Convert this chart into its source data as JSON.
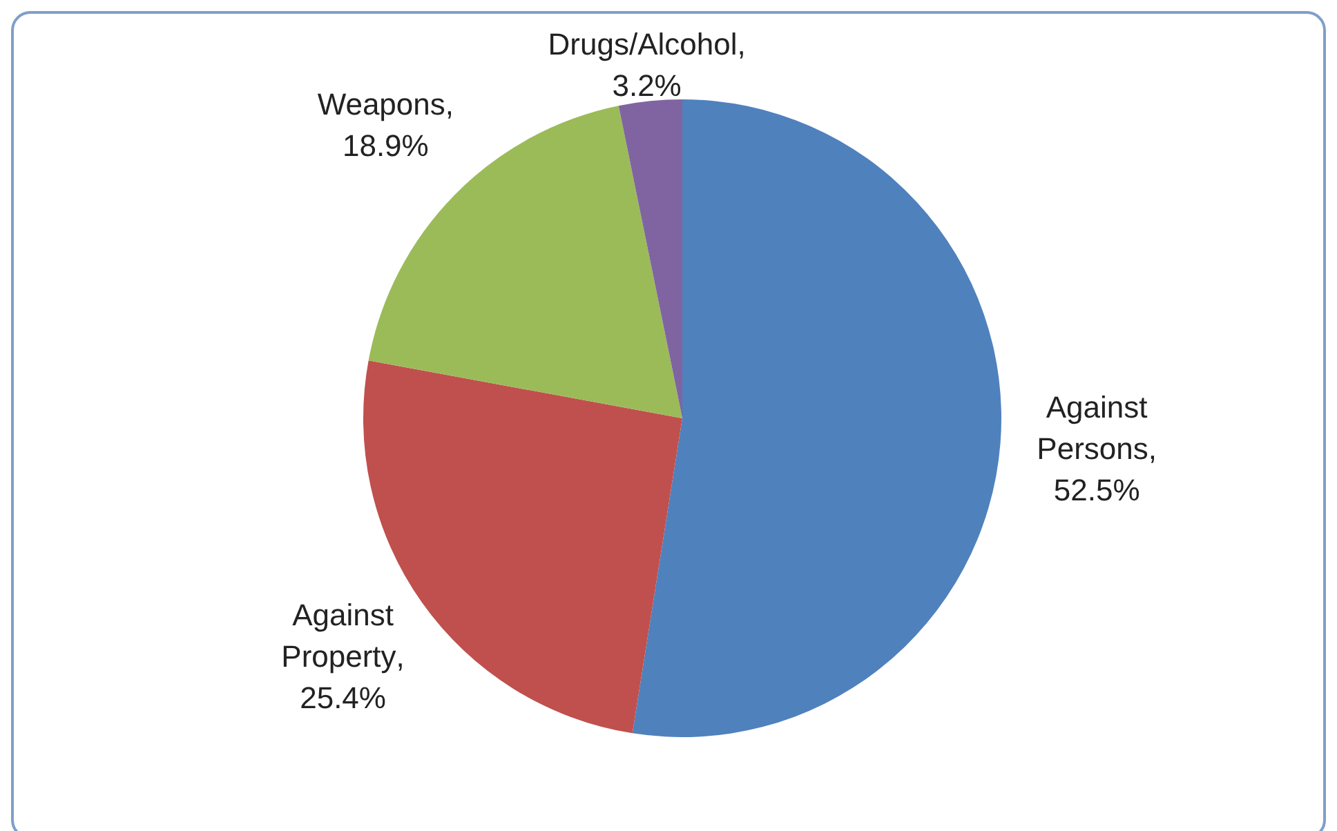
{
  "chart_data": {
    "type": "pie",
    "categories": [
      "Against Persons",
      "Against Property",
      "Weapons",
      "Drugs/Alcohol"
    ],
    "values": [
      52.5,
      25.4,
      18.9,
      3.2
    ],
    "value_labels": [
      ", 52.5%",
      ", 25.4%",
      ", 18.9%",
      ", 3.2%"
    ],
    "colors": [
      "#4f81bd",
      "#c0504d",
      "#9bbb59",
      "#8064a2"
    ],
    "legend": false
  }
}
